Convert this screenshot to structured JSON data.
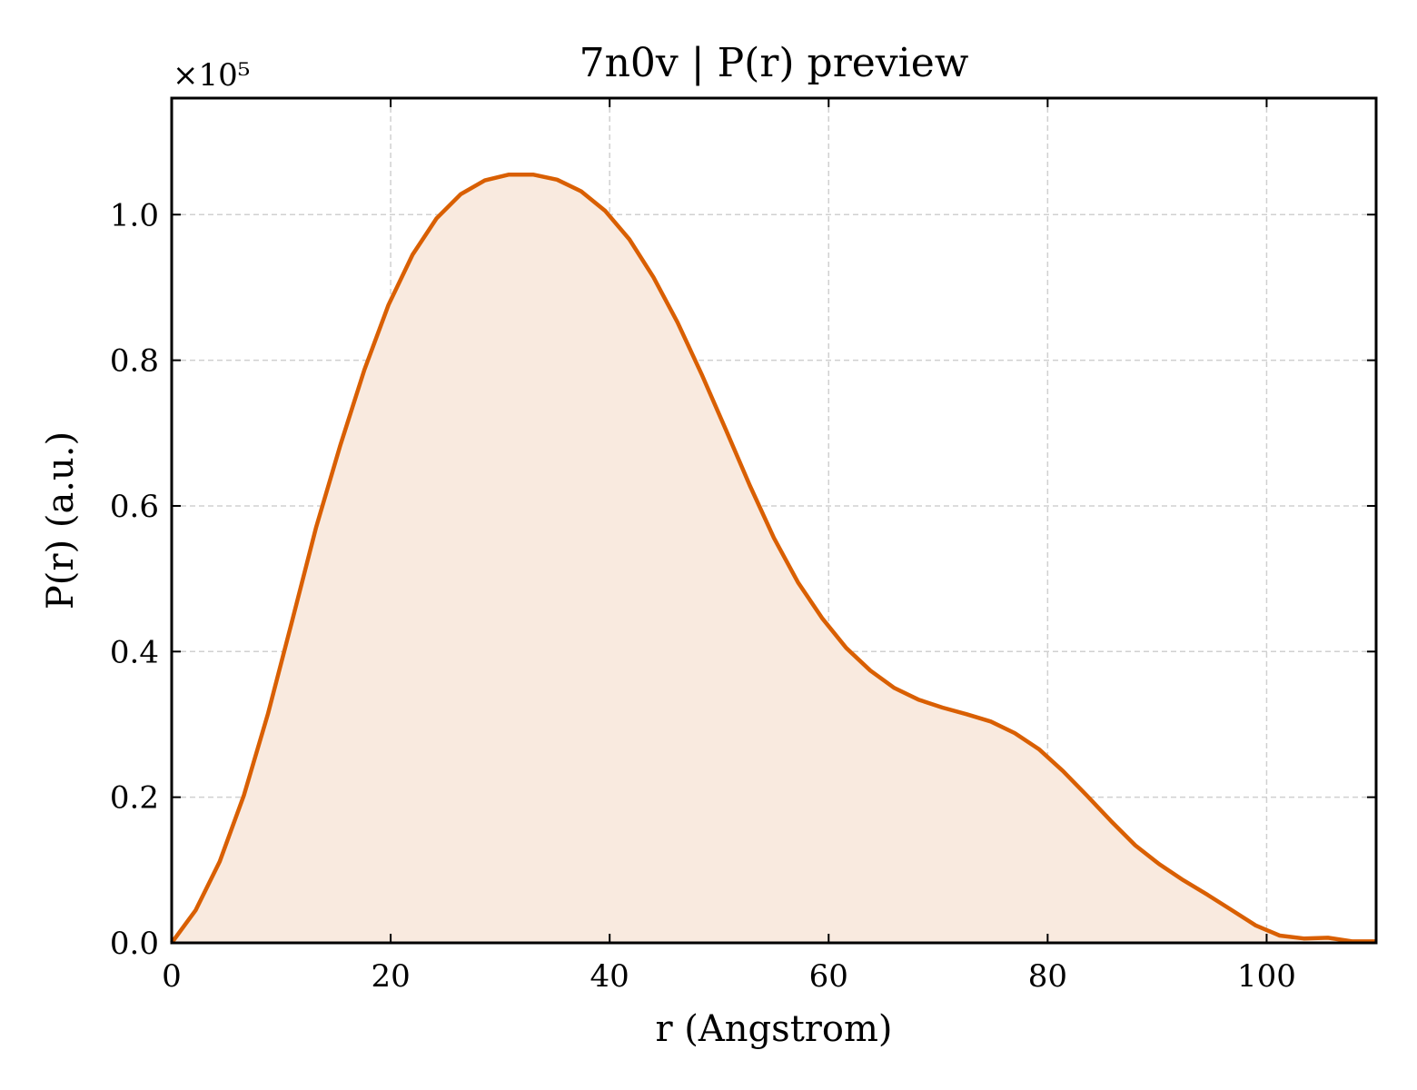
{
  "chart_data": {
    "type": "area",
    "title": "7n0v | P(r) preview",
    "xlabel": "r (Angstrom)",
    "ylabel": "P(r) (a.u.)",
    "y_offset_label": "×10⁵",
    "y_scale": 100000,
    "xlim": [
      0,
      110
    ],
    "ylim": [
      0,
      1.16
    ],
    "grid": true,
    "line_color": "#d95f02",
    "fill_color": "#f9eadf",
    "x_ticks": [
      0,
      20,
      40,
      60,
      80,
      100
    ],
    "x_tick_labels": [
      "0",
      "20",
      "40",
      "60",
      "80",
      "100"
    ],
    "y_ticks": [
      0.0,
      0.2,
      0.4,
      0.6,
      0.8,
      1.0
    ],
    "y_tick_labels": [
      "0.0",
      "0.2",
      "0.4",
      "0.6",
      "0.8",
      "1.0"
    ],
    "series": [
      {
        "x": [
          0,
          2.2,
          4.4,
          6.6,
          8.8,
          11.0,
          13.2,
          15.4,
          17.6,
          19.8,
          22.0,
          24.2,
          26.4,
          28.6,
          30.8,
          33.0,
          35.2,
          37.4,
          39.6,
          41.8,
          44.0,
          46.2,
          48.4,
          50.6,
          52.8,
          55.0,
          57.2,
          59.4,
          61.6,
          63.8,
          66.0,
          68.2,
          70.4,
          72.6,
          74.8,
          77.0,
          79.2,
          81.4,
          83.6,
          85.8,
          88.0,
          90.2,
          92.4,
          94.6,
          96.8,
          99.0,
          101.2,
          103.4,
          105.6,
          107.8,
          110.0
        ],
        "y": [
          0.0,
          0.045,
          0.112,
          0.203,
          0.315,
          0.442,
          0.571,
          0.683,
          0.787,
          0.876,
          0.945,
          0.995,
          1.028,
          1.047,
          1.055,
          1.055,
          1.048,
          1.032,
          1.005,
          0.966,
          0.914,
          0.852,
          0.781,
          0.705,
          0.628,
          0.556,
          0.495,
          0.446,
          0.405,
          0.374,
          0.35,
          0.334,
          0.323,
          0.314,
          0.304,
          0.288,
          0.266,
          0.236,
          0.202,
          0.167,
          0.134,
          0.108,
          0.086,
          0.066,
          0.045,
          0.024,
          0.01,
          0.006,
          0.007,
          0.002,
          0.002
        ]
      }
    ]
  }
}
